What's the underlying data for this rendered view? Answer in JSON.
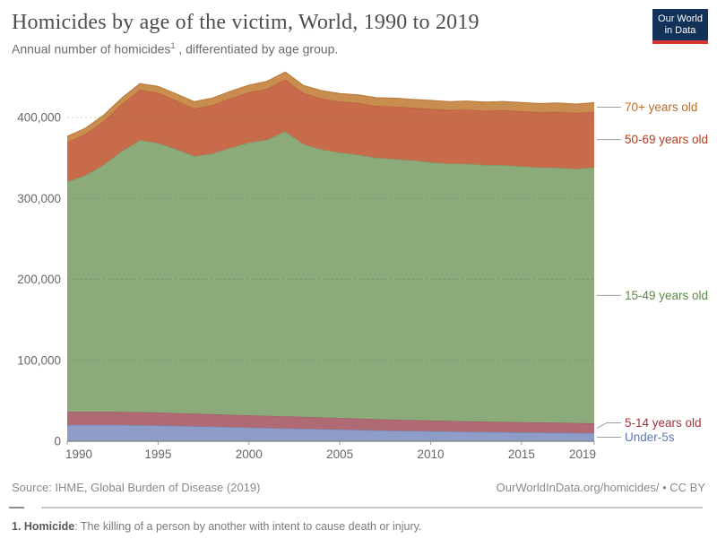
{
  "header": {
    "title": "Homicides by age of the victim, World, 1990 to 2019",
    "subtitle_prefix": "Annual number of homicides",
    "subtitle_sup": "1",
    "subtitle_suffix": " , differentiated by age group.",
    "logo_line1": "Our World",
    "logo_line2": "in Data",
    "logo_bg": "#12325a",
    "logo_stripe": "#d3352e"
  },
  "chart_data": {
    "type": "area",
    "stacked": true,
    "title": "Homicides by age of the victim, World, 1990 to 2019",
    "xlabel": "",
    "ylabel": "",
    "grid": "dashed-horizontal",
    "legend_position": "right-edge-labels",
    "ylim": [
      0,
      450000
    ],
    "yticks": [
      0,
      100000,
      200000,
      300000,
      400000
    ],
    "ytick_labels": [
      "0",
      "100,000",
      "200,000",
      "300,000",
      "400,000"
    ],
    "xticks": [
      1990,
      1995,
      2000,
      2005,
      2010,
      2015,
      2019
    ],
    "x": [
      1990,
      1991,
      1992,
      1993,
      1994,
      1995,
      1996,
      1997,
      1998,
      1999,
      2000,
      2001,
      2002,
      2003,
      2004,
      2005,
      2006,
      2007,
      2008,
      2009,
      2010,
      2011,
      2012,
      2013,
      2014,
      2015,
      2016,
      2017,
      2018,
      2019
    ],
    "series": [
      {
        "name": "Under-5s",
        "fill": "#8d9dc7",
        "edge": "#7388b8",
        "label_color": "#5d79b6",
        "values": [
          20000,
          20000,
          20000,
          20000,
          19800,
          19500,
          19000,
          18500,
          18000,
          17500,
          17000,
          16500,
          16000,
          15500,
          15000,
          14500,
          14000,
          13500,
          13000,
          12700,
          12400,
          12100,
          11800,
          11500,
          11200,
          11000,
          10800,
          10500,
          10200,
          10000
        ]
      },
      {
        "name": "5-14 years old",
        "fill": "#b06a73",
        "edge": "#9f5a66",
        "label_color": "#a63340",
        "values": [
          16500,
          16500,
          16400,
          16300,
          16200,
          16000,
          15800,
          15600,
          15400,
          15200,
          15000,
          14900,
          14800,
          14600,
          14400,
          14200,
          14000,
          13800,
          13600,
          13400,
          13200,
          13000,
          12900,
          12800,
          12700,
          12600,
          12500,
          12400,
          12300,
          12200
        ]
      },
      {
        "name": "15-49 years old",
        "fill": "#8cab7b",
        "edge": "#7a9c6a",
        "label_color": "#5c8649",
        "values": [
          284000,
          292000,
          305000,
          322000,
          336000,
          333000,
          326000,
          318000,
          322000,
          330000,
          337000,
          341000,
          352000,
          337000,
          331000,
          328000,
          326000,
          323000,
          322000,
          321000,
          319000,
          318000,
          318000,
          317000,
          317000,
          316000,
          315000,
          315000,
          314000,
          316000
        ]
      },
      {
        "name": "50-69 years old",
        "fill": "#c86b4b",
        "edge": "#b95c3b",
        "label_color": "#b33d22",
        "values": [
          49000,
          51000,
          54000,
          58000,
          62000,
          62000,
          60000,
          59000,
          60000,
          61000,
          62000,
          63000,
          64000,
          63000,
          63000,
          63000,
          64000,
          64000,
          65000,
          65000,
          66000,
          66000,
          67000,
          67000,
          68000,
          68000,
          68000,
          69000,
          69000,
          69000
        ]
      },
      {
        "name": "70+ years old",
        "fill": "#ca8d50",
        "edge": "#bc7e3f",
        "label_color": "#bf6c22",
        "values": [
          7000,
          7200,
          7400,
          7600,
          7800,
          8000,
          8200,
          8400,
          8600,
          8800,
          9000,
          9200,
          9400,
          9500,
          9700,
          9800,
          10000,
          10100,
          10200,
          10300,
          10400,
          10500,
          10600,
          10700,
          10800,
          10900,
          10900,
          11000,
          11000,
          11100
        ]
      }
    ]
  },
  "footer": {
    "source": "Source: IHME, Global Burden of Disease (2019)",
    "attribution": "OurWorldInData.org/homicides/ • CC BY",
    "footnote_term": "1. Homicide",
    "footnote_rest": ": The killing of a person by another with intent to cause death or injury."
  }
}
